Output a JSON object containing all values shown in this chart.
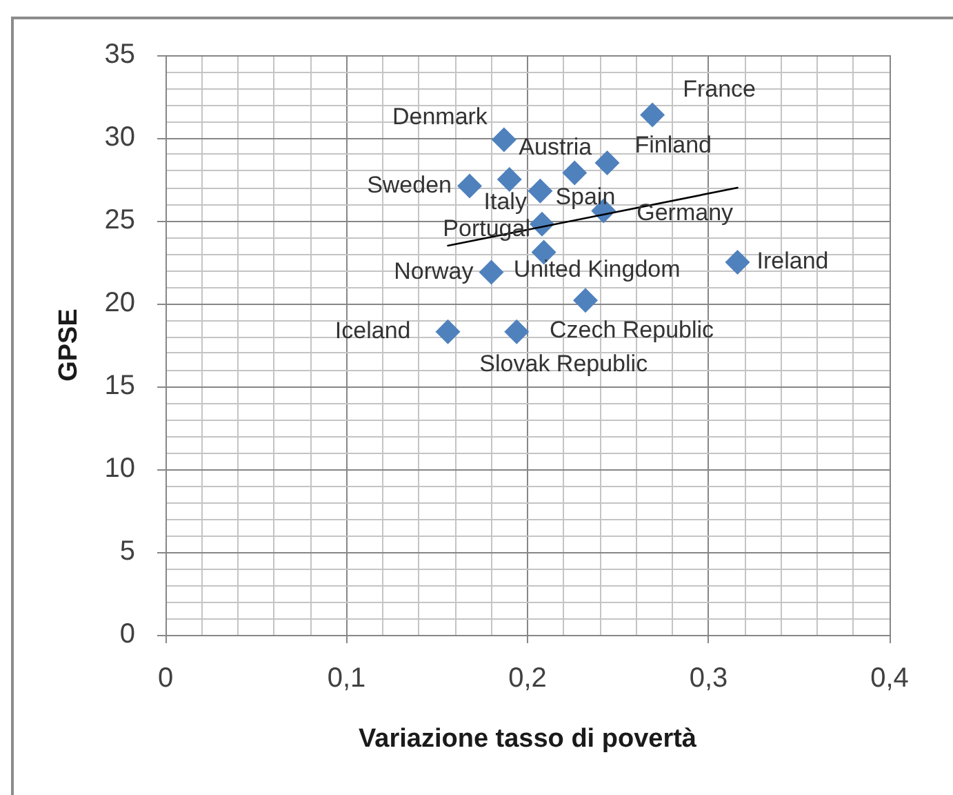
{
  "chart_data": {
    "type": "scatter",
    "xlabel": "Variazione tasso di povertà",
    "ylabel": "GPSE",
    "xlim": [
      0,
      0.4
    ],
    "xticks": [
      0,
      {
        "value": 0.02,
        "label": null
      },
      {
        "value": 0.04,
        "label": null
      },
      {
        "value": 0.06,
        "label": null
      },
      {
        "value": 0.08,
        "label": null
      },
      {
        "value": 0.1,
        "label": "0,1"
      },
      {
        "value": 0.12,
        "label": null
      },
      {
        "value": 0.14,
        "label": null
      },
      {
        "value": 0.16,
        "label": null
      },
      {
        "value": 0.18,
        "label": null
      },
      {
        "value": 0.2,
        "label": "0,2"
      },
      {
        "value": 0.22,
        "label": null
      },
      {
        "value": 0.24,
        "label": null
      },
      {
        "value": 0.26,
        "label": null
      },
      {
        "value": 0.28,
        "label": null
      },
      {
        "value": 0.3,
        "label": "0,3"
      },
      {
        "value": 0.32,
        "label": null
      },
      {
        "value": 0.34,
        "label": null
      },
      {
        "value": 0.36,
        "label": null
      },
      {
        "value": 0.38,
        "label": null
      },
      {
        "value": 0.4,
        "label": "0,4"
      }
    ],
    "ylim": [
      0,
      35
    ],
    "yticks": [
      0,
      {
        "value": 1,
        "label": null
      },
      {
        "value": 2,
        "label": null
      },
      {
        "value": 3,
        "label": null
      },
      {
        "value": 4,
        "label": null
      },
      5,
      {
        "value": 6,
        "label": null
      },
      {
        "value": 7,
        "label": null
      },
      {
        "value": 8,
        "label": null
      },
      {
        "value": 9,
        "label": null
      },
      10,
      {
        "value": 11,
        "label": null
      },
      {
        "value": 12,
        "label": null
      },
      {
        "value": 13,
        "label": null
      },
      {
        "value": 14,
        "label": null
      },
      15,
      {
        "value": 16,
        "label": null
      },
      {
        "value": 17,
        "label": null
      },
      {
        "value": 18,
        "label": null
      },
      {
        "value": 19,
        "label": null
      },
      20,
      {
        "value": 21,
        "label": null
      },
      {
        "value": 22,
        "label": null
      },
      {
        "value": 23,
        "label": null
      },
      {
        "value": 24,
        "label": null
      },
      25,
      {
        "value": 26,
        "label": null
      },
      {
        "value": 27,
        "label": null
      },
      {
        "value": 28,
        "label": null
      },
      {
        "value": 29,
        "label": null
      },
      30,
      {
        "value": 31,
        "label": null
      },
      {
        "value": 32,
        "label": null
      },
      {
        "value": 33,
        "label": null
      },
      {
        "value": 34,
        "label": null
      },
      35
    ],
    "grid": true,
    "legend": false,
    "marker": "diamond",
    "series": [
      {
        "name": "France",
        "color": "#4f81bd",
        "x": [
          0.269
        ],
        "values": [
          31.4
        ]
      },
      {
        "name": "Denmark",
        "color": "#4f81bd",
        "x": [
          0.187
        ],
        "values": [
          29.9
        ]
      },
      {
        "name": "Finland",
        "color": "#4f81bd",
        "x": [
          0.244
        ],
        "values": [
          28.5
        ]
      },
      {
        "name": "Austria",
        "color": "#4f81bd",
        "x": [
          0.226
        ],
        "values": [
          27.9
        ]
      },
      {
        "name": "Italy",
        "color": "#4f81bd",
        "x": [
          0.19
        ],
        "values": [
          27.5
        ]
      },
      {
        "name": "Sweden",
        "color": "#4f81bd",
        "x": [
          0.168
        ],
        "values": [
          27.1
        ]
      },
      {
        "name": "Spain",
        "color": "#4f81bd",
        "x": [
          0.207
        ],
        "values": [
          26.8
        ]
      },
      {
        "name": "Germany",
        "color": "#4f81bd",
        "x": [
          0.242
        ],
        "values": [
          25.6
        ]
      },
      {
        "name": "Portugal",
        "color": "#4f81bd",
        "x": [
          0.208
        ],
        "values": [
          24.8
        ]
      },
      {
        "name": "United Kingdom",
        "color": "#4f81bd",
        "x": [
          0.209
        ],
        "values": [
          23.1
        ]
      },
      {
        "name": "Ireland",
        "color": "#4f81bd",
        "x": [
          0.316
        ],
        "values": [
          22.5
        ]
      },
      {
        "name": "Norway",
        "color": "#4f81bd",
        "x": [
          0.18
        ],
        "values": [
          21.9
        ]
      },
      {
        "name": "Czech Republic",
        "color": "#4f81bd",
        "x": [
          0.232
        ],
        "values": [
          20.2
        ]
      },
      {
        "name": "Iceland",
        "color": "#4f81bd",
        "x": [
          0.156
        ],
        "values": [
          18.3
        ]
      },
      {
        "name": "Slovak Republic",
        "color": "#4f81bd",
        "x": [
          0.194
        ],
        "values": [
          18.3
        ]
      },
      {
        "type": "line",
        "color": "#000000",
        "marker": "none",
        "line_style": "solid",
        "x": [
          0.156,
          0.316
        ],
        "values": [
          23.5,
          27.0
        ]
      }
    ]
  }
}
